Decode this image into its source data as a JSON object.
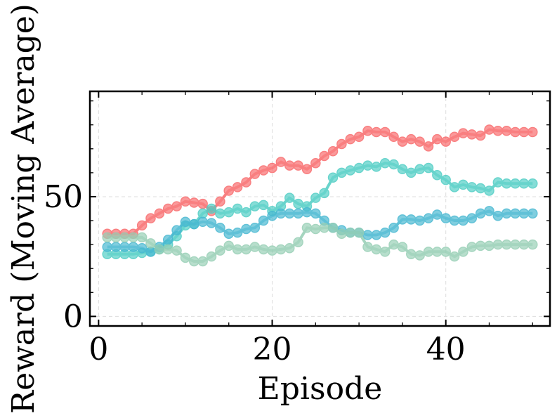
{
  "chart_data": {
    "type": "line",
    "xlabel": "Episode",
    "ylabel": "Reward (Moving Average)",
    "xlim": [
      -1,
      52
    ],
    "ylim": [
      -4,
      94
    ],
    "x_ticks": [
      0,
      20,
      40
    ],
    "y_ticks": [
      0,
      50
    ],
    "grid": true,
    "legend": "none",
    "series": [
      {
        "color": "#f8696b",
        "x": [
          1,
          2,
          3,
          4,
          5,
          6,
          7,
          8,
          9,
          10,
          11,
          12,
          13,
          14,
          15,
          16,
          17,
          18,
          19,
          20,
          21,
          22,
          23,
          24,
          25,
          26,
          27,
          28,
          29,
          30,
          31,
          32,
          33,
          34,
          35,
          36,
          37,
          38,
          39,
          40,
          41,
          42,
          43,
          44,
          45,
          46,
          47,
          48,
          49,
          50
        ],
        "y": [
          34.5,
          34.5,
          34.5,
          34.5,
          38,
          41,
          43,
          45,
          46,
          48,
          47.5,
          47,
          44,
          48,
          52.5,
          54,
          56,
          59.5,
          61,
          62,
          64.5,
          63,
          63,
          61.5,
          64,
          67,
          69,
          72,
          74,
          75,
          77.5,
          77,
          77,
          75,
          73,
          74,
          73,
          71,
          74,
          73,
          75,
          76.5,
          76,
          75.5,
          78,
          77.5,
          77.5,
          77,
          77,
          77
        ]
      },
      {
        "color": "#4ecdc4",
        "x": [
          1,
          2,
          3,
          4,
          5,
          6,
          7,
          8,
          9,
          10,
          11,
          12,
          13,
          14,
          15,
          16,
          17,
          18,
          19,
          20,
          21,
          22,
          23,
          24,
          25,
          26,
          27,
          28,
          29,
          30,
          31,
          32,
          33,
          34,
          35,
          36,
          37,
          38,
          39,
          40,
          41,
          42,
          43,
          44,
          45,
          46,
          47,
          48,
          49,
          50
        ],
        "y": [
          26,
          26,
          26,
          26,
          26.5,
          27,
          28,
          30,
          33.5,
          38,
          38.5,
          43,
          45,
          43,
          43.5,
          45,
          43.5,
          46,
          46.5,
          44,
          46,
          49.5,
          47,
          46,
          49.5,
          51.5,
          58,
          60,
          61,
          62,
          63,
          62.5,
          64,
          63.5,
          61.5,
          60,
          61.5,
          62,
          59,
          57,
          54,
          55,
          54,
          53.5,
          52.5,
          56,
          55.5,
          55.5,
          55.5,
          55.5
        ]
      },
      {
        "color": "#45b7d1",
        "x": [
          1,
          2,
          3,
          4,
          5,
          6,
          7,
          8,
          9,
          10,
          11,
          12,
          13,
          14,
          15,
          16,
          17,
          18,
          19,
          20,
          21,
          22,
          23,
          24,
          25,
          26,
          27,
          28,
          29,
          30,
          31,
          32,
          33,
          34,
          35,
          36,
          37,
          38,
          39,
          40,
          41,
          42,
          43,
          44,
          45,
          46,
          47,
          48,
          49,
          50
        ],
        "y": [
          29,
          29,
          29,
          29,
          28.5,
          27,
          29,
          32,
          36,
          39.5,
          38.5,
          39.5,
          39,
          37,
          34.5,
          35,
          36.5,
          37,
          40,
          42,
          43,
          43,
          43,
          43.5,
          43,
          40,
          37,
          36,
          35,
          35,
          34,
          34,
          35,
          37,
          40.5,
          40.5,
          40,
          41,
          42.5,
          41,
          40,
          40,
          41,
          43,
          44,
          42,
          43,
          43,
          43,
          43
        ]
      },
      {
        "color": "#96ceb4",
        "x": [
          1,
          2,
          3,
          4,
          5,
          6,
          7,
          8,
          9,
          10,
          11,
          12,
          13,
          14,
          15,
          16,
          17,
          18,
          19,
          20,
          21,
          22,
          23,
          24,
          25,
          26,
          27,
          28,
          29,
          30,
          31,
          32,
          33,
          34,
          35,
          36,
          37,
          38,
          39,
          40,
          41,
          42,
          43,
          44,
          45,
          46,
          47,
          48,
          49,
          50
        ],
        "y": [
          33,
          33,
          33,
          33,
          33,
          30.5,
          28,
          28,
          27.5,
          24.5,
          23,
          23,
          25,
          27.5,
          29.5,
          28,
          28,
          29,
          28,
          27.5,
          28,
          28.5,
          31,
          37,
          36.5,
          37,
          37,
          34.5,
          35,
          35,
          29,
          28,
          27,
          30,
          29,
          26,
          25.5,
          27,
          27,
          27,
          25,
          27,
          29,
          29.5,
          29.5,
          30,
          30,
          30,
          30,
          30
        ]
      }
    ]
  }
}
